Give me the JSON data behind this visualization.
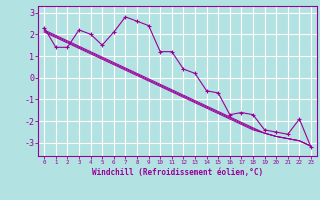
{
  "xlabel": "Windchill (Refroidissement éolien,°C)",
  "background_color": "#b3e2e2",
  "grid_color": "#c8eaea",
  "line_color": "#990099",
  "x_hours": [
    0,
    1,
    2,
    3,
    4,
    5,
    6,
    7,
    8,
    9,
    10,
    11,
    12,
    13,
    14,
    15,
    16,
    17,
    18,
    19,
    20,
    21,
    22,
    23
  ],
  "y_main": [
    2.3,
    1.4,
    1.4,
    2.2,
    2.0,
    1.5,
    2.1,
    2.8,
    2.6,
    2.4,
    1.2,
    1.2,
    0.4,
    0.2,
    -0.6,
    -0.7,
    -1.7,
    -1.6,
    -1.7,
    -2.4,
    -2.5,
    -2.6,
    -1.9,
    -3.2
  ],
  "y_linear1": [
    2.2,
    1.95,
    1.7,
    1.45,
    1.2,
    0.95,
    0.7,
    0.45,
    0.2,
    -0.05,
    -0.3,
    -0.55,
    -0.8,
    -1.05,
    -1.3,
    -1.55,
    -1.8,
    -2.05,
    -2.3,
    -2.55,
    -2.7,
    -2.8,
    -2.9,
    -3.15
  ],
  "y_linear2": [
    2.15,
    1.9,
    1.65,
    1.4,
    1.15,
    0.9,
    0.65,
    0.4,
    0.15,
    -0.1,
    -0.35,
    -0.6,
    -0.85,
    -1.1,
    -1.35,
    -1.6,
    -1.85,
    -2.1,
    -2.35,
    -2.55,
    -2.7,
    -2.8,
    -2.9,
    -3.15
  ],
  "y_linear3": [
    2.1,
    1.85,
    1.6,
    1.35,
    1.1,
    0.85,
    0.6,
    0.35,
    0.1,
    -0.15,
    -0.4,
    -0.65,
    -0.9,
    -1.15,
    -1.4,
    -1.65,
    -1.9,
    -2.15,
    -2.4,
    -2.55,
    -2.7,
    -2.8,
    -2.9,
    -3.15
  ],
  "ylim": [
    -3.6,
    3.3
  ],
  "yticks": [
    -3,
    -2,
    -1,
    0,
    1,
    2,
    3
  ],
  "xlim": [
    -0.5,
    23.5
  ]
}
